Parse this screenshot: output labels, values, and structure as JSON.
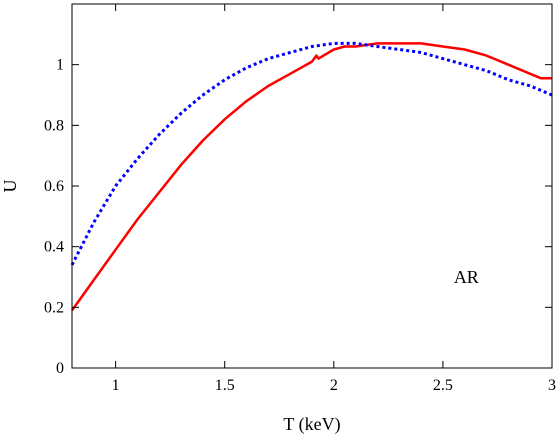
{
  "chart_data": {
    "type": "line",
    "xlabel": "T (keV)",
    "ylabel": "U",
    "xlim": [
      0.8,
      3.0
    ],
    "ylim": [
      0.0,
      1.2
    ],
    "xticks": [
      1,
      1.5,
      2,
      2.5,
      3
    ],
    "xtick_labels": [
      "1",
      "1.5",
      "2",
      "2.5",
      "3"
    ],
    "yticks": [
      0,
      0.2,
      0.4,
      0.6,
      0.8,
      1
    ],
    "ytick_labels": [
      "0",
      "0.2",
      "0.4",
      "0.6",
      "0.8",
      "1"
    ],
    "grid": false,
    "annotation": {
      "text": "AR",
      "x": 2.55,
      "y": 0.28
    },
    "series": [
      {
        "color": "#ff0000",
        "style": "solid",
        "x": [
          0.8,
          0.9,
          1.0,
          1.1,
          1.2,
          1.3,
          1.4,
          1.5,
          1.6,
          1.7,
          1.8,
          1.9,
          1.92,
          1.93,
          2.0,
          2.05,
          2.1,
          2.2,
          2.3,
          2.4,
          2.5,
          2.6,
          2.7,
          2.8,
          2.9,
          2.95,
          3.0
        ],
        "y": [
          0.19,
          0.29,
          0.39,
          0.49,
          0.58,
          0.67,
          0.75,
          0.82,
          0.88,
          0.93,
          0.97,
          1.01,
          1.03,
          1.02,
          1.05,
          1.06,
          1.06,
          1.07,
          1.07,
          1.07,
          1.06,
          1.05,
          1.03,
          1.0,
          0.97,
          0.955,
          0.955
        ]
      },
      {
        "color": "#0000ff",
        "style": "dotted",
        "x": [
          0.8,
          0.9,
          1.0,
          1.1,
          1.2,
          1.3,
          1.4,
          1.5,
          1.6,
          1.7,
          1.8,
          1.9,
          2.0,
          2.1,
          2.2,
          2.3,
          2.4,
          2.5,
          2.6,
          2.7,
          2.8,
          2.9,
          3.0
        ],
        "y": [
          0.34,
          0.48,
          0.6,
          0.69,
          0.77,
          0.84,
          0.9,
          0.95,
          0.99,
          1.02,
          1.04,
          1.06,
          1.07,
          1.07,
          1.06,
          1.05,
          1.04,
          1.02,
          1.0,
          0.98,
          0.95,
          0.93,
          0.9
        ]
      }
    ]
  }
}
